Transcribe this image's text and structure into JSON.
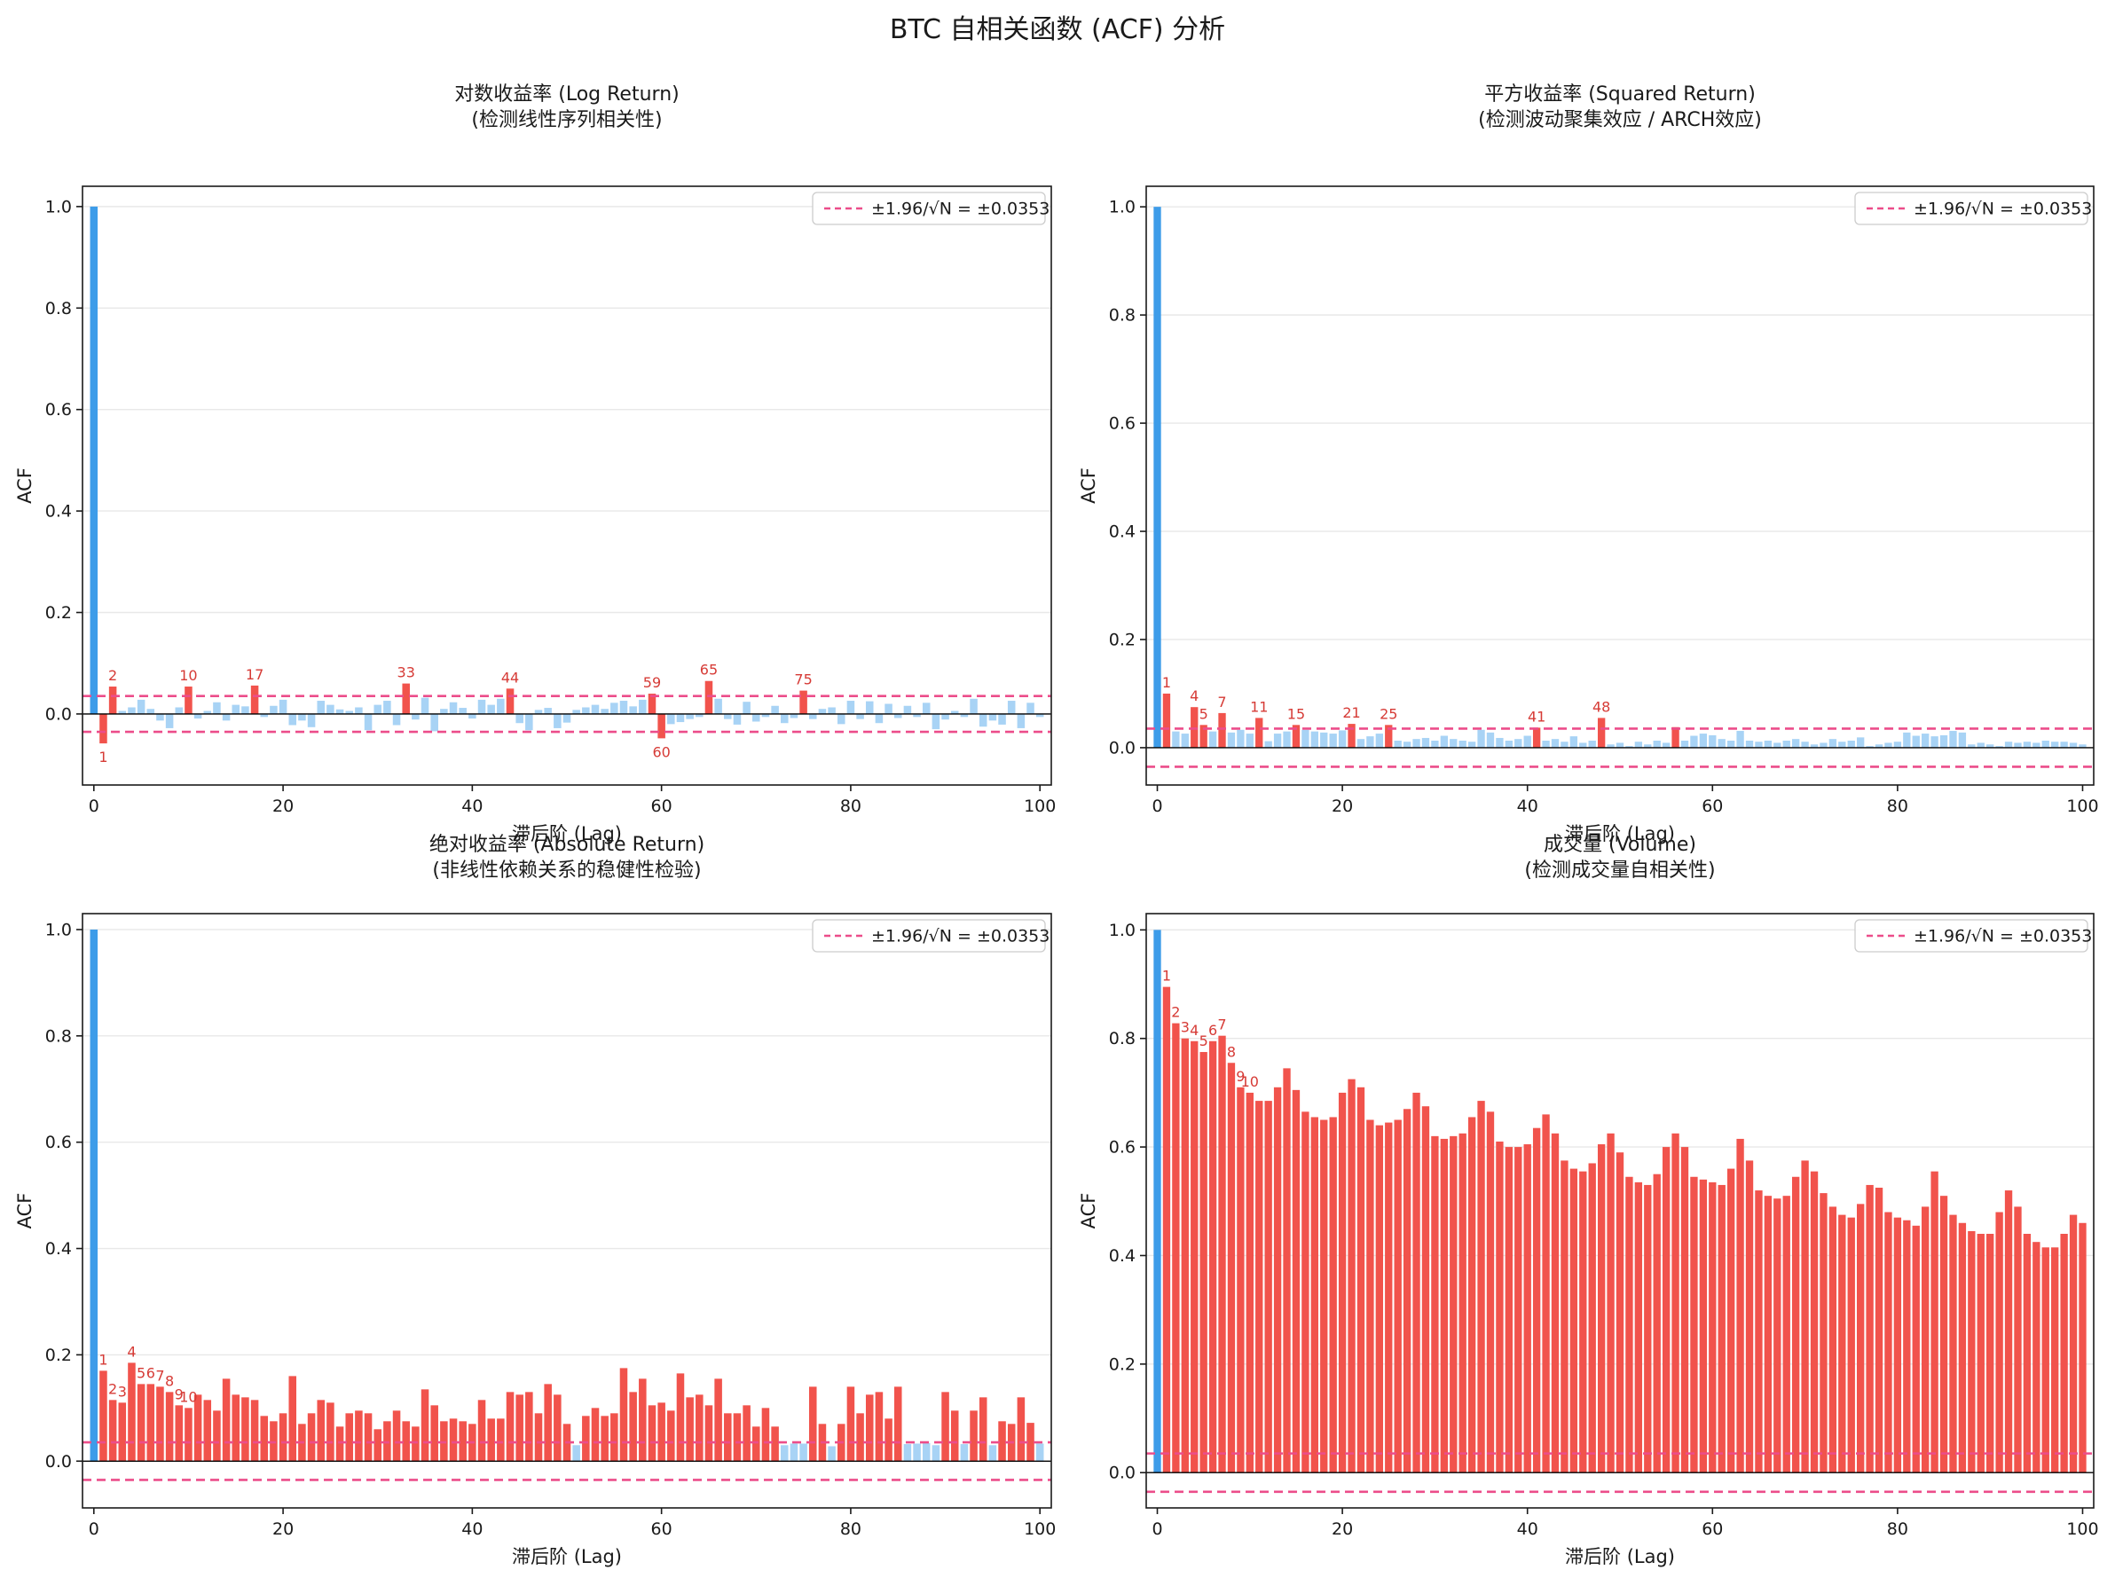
{
  "figure": {
    "title": "BTC 自相关函数 (ACF) 分析"
  },
  "colors": {
    "lag0_blue": "#3D9CE9",
    "insignificant_blue": "#A8D3F5",
    "significant_red": "#F1534C",
    "label_red": "#D63B36",
    "threshold_pink": "#EC4D8A",
    "grid": "#E8E8E8",
    "spine": "#1a1a1a",
    "text": "#1a1a1a",
    "legend_border": "#cccccc"
  },
  "axis": {
    "xticks": [
      0,
      20,
      40,
      60,
      80,
      100
    ],
    "ytick_labels": [
      "1.0",
      "0.8",
      "0.6",
      "0.4",
      "0.2",
      "0.0"
    ],
    "ytick_values": [
      1.0,
      0.8,
      0.6,
      0.4,
      0.2,
      0.0
    ]
  },
  "chart_data": [
    {
      "type": "bar",
      "title": "对数收益率 (Log Return)",
      "subtitle": "(检测线性序列相关性)",
      "xlabel": "滞后阶 (Lag)",
      "ylabel": "ACF",
      "legend": "±1.96/√N = ±0.0353",
      "threshold": 0.0353,
      "xlim": [
        -1.2,
        101.2
      ],
      "ylim": [
        -0.14,
        1.04
      ],
      "labeled_lags": [
        1,
        2,
        10,
        17,
        33,
        44,
        59,
        60,
        65,
        75
      ],
      "values": [
        1.0,
        -0.058,
        0.054,
        0.006,
        0.013,
        0.028,
        0.01,
        -0.013,
        -0.028,
        0.013,
        0.054,
        -0.009,
        0.006,
        0.023,
        -0.013,
        0.018,
        0.015,
        0.056,
        -0.006,
        0.016,
        0.028,
        -0.022,
        -0.013,
        -0.026,
        0.026,
        0.018,
        0.009,
        0.006,
        0.013,
        -0.032,
        0.018,
        0.026,
        -0.022,
        0.06,
        -0.011,
        0.032,
        -0.034,
        0.01,
        0.023,
        0.012,
        -0.009,
        0.028,
        0.018,
        0.03,
        0.05,
        -0.018,
        -0.032,
        0.008,
        0.012,
        -0.028,
        -0.017,
        0.008,
        0.013,
        0.018,
        0.01,
        0.022,
        0.026,
        0.015,
        0.028,
        0.04,
        -0.048,
        -0.02,
        -0.016,
        -0.01,
        -0.006,
        0.065,
        0.03,
        -0.01,
        -0.021,
        0.024,
        -0.015,
        -0.006,
        0.016,
        -0.018,
        -0.008,
        0.046,
        -0.01,
        0.01,
        0.013,
        -0.02,
        0.026,
        -0.01,
        0.025,
        -0.018,
        0.02,
        -0.008,
        0.016,
        -0.006,
        0.022,
        -0.03,
        -0.011,
        0.006,
        -0.006,
        0.03,
        -0.025,
        -0.013,
        -0.021,
        0.026,
        -0.028,
        0.022,
        -0.006
      ]
    },
    {
      "type": "bar",
      "title": "平方收益率 (Squared Return)",
      "subtitle": "(检测波动聚集效应 / ARCH效应)",
      "xlabel": "滞后阶 (Lag)",
      "ylabel": "ACF",
      "legend": "±1.96/√N = ±0.0353",
      "threshold": 0.0353,
      "xlim": [
        -1.2,
        101.2
      ],
      "ylim": [
        -0.069,
        1.038
      ],
      "labeled_lags": [
        1,
        4,
        5,
        7,
        11,
        15,
        21,
        25,
        41,
        48
      ],
      "values": [
        1.0,
        0.1,
        0.03,
        0.026,
        0.075,
        0.042,
        0.03,
        0.064,
        0.028,
        0.033,
        0.026,
        0.055,
        0.012,
        0.026,
        0.03,
        0.042,
        0.033,
        0.03,
        0.028,
        0.026,
        0.032,
        0.044,
        0.016,
        0.021,
        0.026,
        0.042,
        0.013,
        0.011,
        0.016,
        0.018,
        0.013,
        0.022,
        0.016,
        0.013,
        0.011,
        0.033,
        0.028,
        0.018,
        0.013,
        0.016,
        0.022,
        0.037,
        0.013,
        0.016,
        0.011,
        0.021,
        0.009,
        0.013,
        0.055,
        0.006,
        0.009,
        0.003,
        0.011,
        0.006,
        0.013,
        0.009,
        0.038,
        0.013,
        0.022,
        0.026,
        0.023,
        0.016,
        0.013,
        0.031,
        0.013,
        0.011,
        0.013,
        0.009,
        0.013,
        0.016,
        0.011,
        0.006,
        0.009,
        0.016,
        0.011,
        0.013,
        0.019,
        0.003,
        0.006,
        0.009,
        0.011,
        0.028,
        0.022,
        0.026,
        0.021,
        0.023,
        0.031,
        0.028,
        0.006,
        0.009,
        0.006,
        0.003,
        0.011,
        0.009,
        0.011,
        0.009,
        0.013,
        0.011,
        0.011,
        0.009,
        0.006
      ]
    },
    {
      "type": "bar",
      "title": "绝对收益率 (Absolute Return)",
      "subtitle": "(非线性依赖关系的稳健性检验)",
      "xlabel": "滞后阶 (Lag)",
      "ylabel": "ACF",
      "legend": "±1.96/√N = ±0.0353",
      "threshold": 0.0353,
      "xlim": [
        -1.2,
        101.2
      ],
      "ylim": [
        -0.088,
        1.03
      ],
      "labeled_lags": [
        1,
        2,
        3,
        4,
        5,
        6,
        7,
        8,
        9,
        10
      ],
      "values": [
        1.0,
        0.17,
        0.115,
        0.11,
        0.185,
        0.145,
        0.145,
        0.14,
        0.13,
        0.105,
        0.1,
        0.125,
        0.115,
        0.095,
        0.155,
        0.125,
        0.12,
        0.115,
        0.085,
        0.075,
        0.09,
        0.16,
        0.07,
        0.09,
        0.115,
        0.11,
        0.065,
        0.09,
        0.095,
        0.09,
        0.06,
        0.075,
        0.095,
        0.075,
        0.065,
        0.135,
        0.105,
        0.075,
        0.08,
        0.075,
        0.07,
        0.115,
        0.08,
        0.08,
        0.13,
        0.125,
        0.13,
        0.09,
        0.145,
        0.125,
        0.07,
        0.03,
        0.085,
        0.1,
        0.085,
        0.09,
        0.175,
        0.13,
        0.155,
        0.105,
        0.11,
        0.095,
        0.165,
        0.12,
        0.125,
        0.105,
        0.155,
        0.09,
        0.09,
        0.105,
        0.065,
        0.1,
        0.065,
        0.03,
        0.033,
        0.033,
        0.14,
        0.07,
        0.028,
        0.07,
        0.14,
        0.09,
        0.125,
        0.13,
        0.08,
        0.14,
        0.032,
        0.033,
        0.034,
        0.03,
        0.13,
        0.095,
        0.032,
        0.095,
        0.12,
        0.03,
        0.075,
        0.07,
        0.12,
        0.072,
        0.033
      ]
    },
    {
      "type": "bar",
      "title": "成交量 (Volume)",
      "subtitle": "(检测成交量自相关性)",
      "xlabel": "滞后阶 (Lag)",
      "ylabel": "ACF",
      "legend": "±1.96/√N = ±0.0353",
      "threshold": 0.0353,
      "xlim": [
        -1.2,
        101.2
      ],
      "ylim": [
        -0.065,
        1.03
      ],
      "labeled_lags": [
        1,
        2,
        3,
        4,
        5,
        6,
        7,
        8,
        9,
        10
      ],
      "values": [
        1.0,
        0.895,
        0.828,
        0.8,
        0.795,
        0.775,
        0.795,
        0.805,
        0.755,
        0.71,
        0.7,
        0.685,
        0.685,
        0.71,
        0.745,
        0.705,
        0.665,
        0.655,
        0.65,
        0.655,
        0.7,
        0.725,
        0.71,
        0.65,
        0.64,
        0.645,
        0.65,
        0.67,
        0.7,
        0.675,
        0.62,
        0.615,
        0.62,
        0.625,
        0.655,
        0.685,
        0.665,
        0.61,
        0.6,
        0.6,
        0.605,
        0.635,
        0.66,
        0.625,
        0.575,
        0.56,
        0.555,
        0.57,
        0.605,
        0.625,
        0.59,
        0.545,
        0.535,
        0.53,
        0.55,
        0.6,
        0.625,
        0.6,
        0.545,
        0.54,
        0.535,
        0.53,
        0.56,
        0.615,
        0.575,
        0.52,
        0.51,
        0.505,
        0.51,
        0.545,
        0.575,
        0.555,
        0.515,
        0.49,
        0.475,
        0.47,
        0.495,
        0.53,
        0.525,
        0.48,
        0.47,
        0.465,
        0.455,
        0.49,
        0.555,
        0.51,
        0.475,
        0.46,
        0.445,
        0.44,
        0.44,
        0.48,
        0.52,
        0.49,
        0.44,
        0.425,
        0.415,
        0.415,
        0.44,
        0.475,
        0.46
      ]
    }
  ]
}
